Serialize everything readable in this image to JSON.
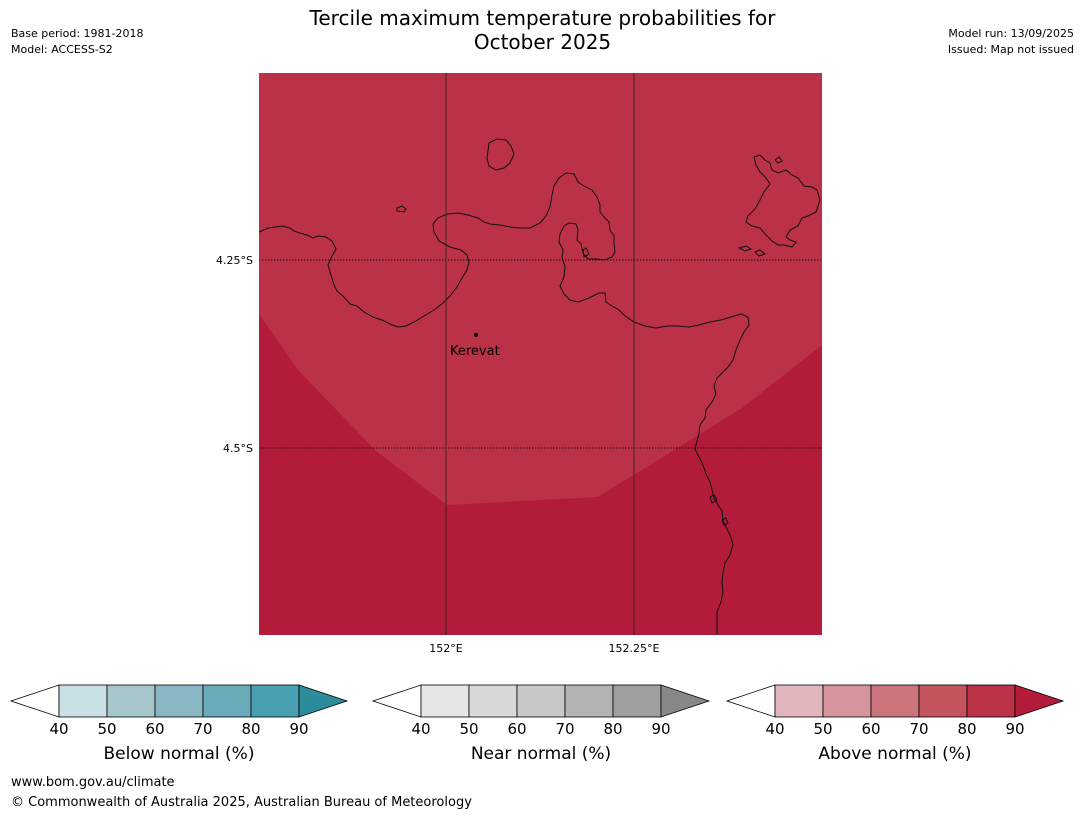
{
  "title_line1": "Tercile maximum temperature probabilities for",
  "title_line2": "October 2025",
  "meta_left": {
    "base_period": "Base period: 1981-2018",
    "model": "Model: ACCESS-S2"
  },
  "meta_right": {
    "model_run": "Model run: 13/09/2025",
    "issued": "Issued: Map not issued"
  },
  "map": {
    "lat_labels": [
      "4.25°S",
      "4.5°S"
    ],
    "lon_labels": [
      "152°E",
      "152.25°E"
    ],
    "place": "Kerevat",
    "colors": {
      "above_80_90": "#bb3148",
      "above_90_plus": "#b21c3a"
    }
  },
  "colorbars": [
    {
      "title": "Below normal (%)",
      "ticks": [
        "40",
        "50",
        "60",
        "70",
        "80",
        "90"
      ],
      "colors": [
        "#ffffff",
        "#c9e1e6",
        "#a6c6cc",
        "#88b6c2",
        "#6aabb9",
        "#48a0b0",
        "#2c8c9c"
      ]
    },
    {
      "title": "Near normal (%)",
      "ticks": [
        "40",
        "50",
        "60",
        "70",
        "80",
        "90"
      ],
      "colors": [
        "#ffffff",
        "#e6e6e6",
        "#d8d8d8",
        "#c8c8c8",
        "#b3b3b3",
        "#9f9f9f",
        "#878787"
      ]
    },
    {
      "title": "Above normal (%)",
      "ticks": [
        "40",
        "50",
        "60",
        "70",
        "80",
        "90"
      ],
      "colors": [
        "#ffffff",
        "#e1b7bd",
        "#d6959c",
        "#cb747b",
        "#c4555f",
        "#bb3148",
        "#b21c3a"
      ]
    }
  ],
  "footer": {
    "url": "www.bom.gov.au/climate",
    "copyright": "© Commonwealth of Australia 2025, Australian Bureau of Meteorology"
  }
}
